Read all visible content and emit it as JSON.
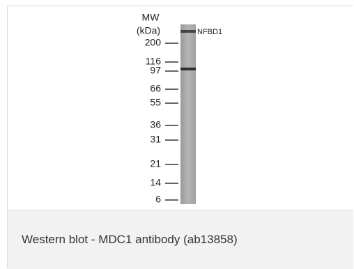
{
  "figure": {
    "axis_title": "MW",
    "axis_unit": "(kDa)",
    "markers": [
      "200",
      "116",
      "97",
      "66",
      "55",
      "36",
      "31",
      "21",
      "14",
      "6"
    ],
    "band_label": "NFBD1"
  },
  "caption": "Western blot - MDC1 antibody (ab13858)"
}
